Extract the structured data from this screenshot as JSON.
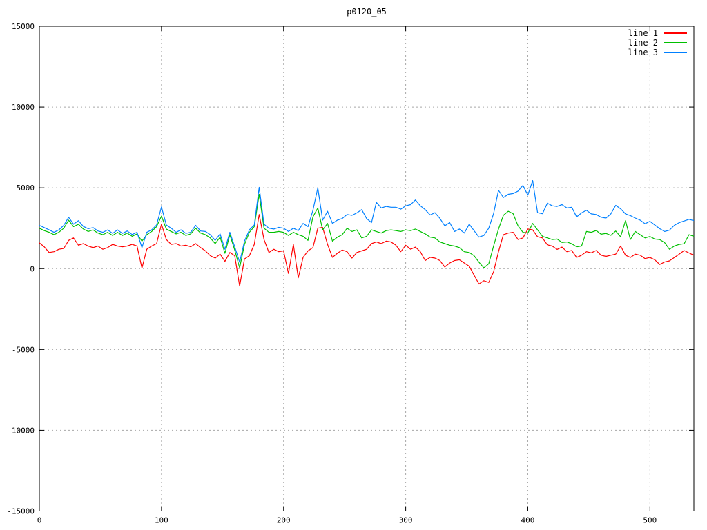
{
  "title": "p0120_05",
  "colors": {
    "background": "#ffffff",
    "border": "#000000",
    "grid": "#a8a8a8",
    "text": "#000000"
  },
  "chart_data": {
    "type": "line",
    "title": "p0120_05",
    "xlabel": "",
    "ylabel": "",
    "xlim": [
      0,
      536
    ],
    "ylim": [
      -15000,
      15000
    ],
    "x_ticks": [
      0,
      100,
      200,
      300,
      400,
      500
    ],
    "y_ticks": [
      -15000,
      -10000,
      -5000,
      0,
      5000,
      10000,
      15000
    ],
    "grid": true,
    "grid_style": "dotted",
    "legend_position": "top-right-inside",
    "x_start": 0,
    "x_step": 4,
    "series": [
      {
        "name": "line 1",
        "color": "#ff0000",
        "values": [
          1600,
          1350,
          1000,
          1050,
          1200,
          1250,
          1750,
          1900,
          1450,
          1550,
          1400,
          1300,
          1400,
          1200,
          1300,
          1500,
          1400,
          1350,
          1400,
          1500,
          1400,
          30,
          1200,
          1400,
          1550,
          2750,
          1800,
          1500,
          1550,
          1400,
          1450,
          1350,
          1550,
          1300,
          1100,
          800,
          650,
          900,
          450,
          1000,
          800,
          -1080,
          600,
          800,
          1500,
          3350,
          1800,
          1000,
          1200,
          1050,
          1100,
          -300,
          1500,
          -570,
          700,
          1100,
          1300,
          2500,
          2550,
          1500,
          700,
          950,
          1150,
          1050,
          650,
          1000,
          1100,
          1200,
          1550,
          1650,
          1550,
          1700,
          1650,
          1450,
          1050,
          1450,
          1200,
          1330,
          1050,
          500,
          700,
          650,
          500,
          100,
          350,
          500,
          550,
          350,
          150,
          -400,
          -950,
          -750,
          -850,
          -200,
          1050,
          2100,
          2200,
          2250,
          1800,
          1900,
          2450,
          2400,
          1970,
          1900,
          1470,
          1400,
          1190,
          1330,
          1050,
          1120,
          690,
          830,
          1050,
          980,
          1120,
          830,
          760,
          830,
          900,
          1400,
          830,
          690,
          900,
          830,
          620,
          690,
          550,
          260,
          410,
          480,
          690,
          900,
          1120,
          970,
          830
        ]
      },
      {
        "name": "line 2",
        "color": "#00c000",
        "values": [
          2500,
          2350,
          2250,
          2100,
          2250,
          2500,
          3000,
          2600,
          2750,
          2450,
          2300,
          2400,
          2200,
          2100,
          2250,
          2050,
          2250,
          2050,
          2200,
          2000,
          2150,
          1700,
          2100,
          2300,
          2600,
          3250,
          2450,
          2300,
          2150,
          2250,
          2050,
          2150,
          2500,
          2200,
          2100,
          1900,
          1550,
          1950,
          950,
          2100,
          1150,
          50,
          1500,
          2250,
          2600,
          4600,
          2500,
          2250,
          2250,
          2300,
          2250,
          2050,
          2250,
          2100,
          2000,
          1750,
          3200,
          3750,
          2400,
          2800,
          1700,
          1950,
          2100,
          2500,
          2300,
          2400,
          1900,
          2000,
          2400,
          2300,
          2200,
          2350,
          2400,
          2350,
          2300,
          2400,
          2350,
          2450,
          2300,
          2150,
          1950,
          1900,
          1650,
          1550,
          1450,
          1400,
          1300,
          1050,
          1000,
          800,
          400,
          50,
          300,
          1400,
          2450,
          3300,
          3550,
          3400,
          2650,
          2250,
          2200,
          2800,
          2400,
          2000,
          1900,
          1800,
          1830,
          1620,
          1650,
          1540,
          1350,
          1400,
          2300,
          2250,
          2360,
          2130,
          2180,
          2060,
          2330,
          1970,
          2970,
          1800,
          2300,
          2100,
          1900,
          1990,
          1830,
          1800,
          1610,
          1200,
          1400,
          1500,
          1540,
          2100,
          2000
        ]
      },
      {
        "name": "line 3",
        "color": "#0080ff",
        "values": [
          2680,
          2540,
          2400,
          2250,
          2400,
          2680,
          3180,
          2750,
          2970,
          2610,
          2470,
          2540,
          2330,
          2250,
          2400,
          2180,
          2400,
          2180,
          2330,
          2110,
          2250,
          1300,
          2250,
          2400,
          2700,
          3820,
          2700,
          2500,
          2250,
          2400,
          2180,
          2250,
          2680,
          2330,
          2300,
          2100,
          1750,
          2150,
          1200,
          2250,
          1350,
          400,
          1700,
          2400,
          2700,
          5030,
          2750,
          2500,
          2450,
          2550,
          2500,
          2300,
          2500,
          2350,
          2800,
          2600,
          3600,
          5000,
          3000,
          3550,
          2800,
          3000,
          3100,
          3350,
          3300,
          3450,
          3650,
          3100,
          2850,
          4100,
          3750,
          3850,
          3800,
          3800,
          3680,
          3890,
          3960,
          4250,
          3890,
          3650,
          3320,
          3460,
          3110,
          2650,
          2850,
          2300,
          2450,
          2200,
          2750,
          2350,
          1950,
          2050,
          2500,
          3400,
          4850,
          4400,
          4600,
          4650,
          4800,
          5150,
          4550,
          5450,
          3460,
          3400,
          4050,
          3890,
          3850,
          3960,
          3750,
          3800,
          3200,
          3450,
          3610,
          3390,
          3350,
          3180,
          3130,
          3390,
          3920,
          3700,
          3390,
          3280,
          3130,
          3000,
          2780,
          2930,
          2700,
          2470,
          2300,
          2380,
          2680,
          2850,
          2950,
          3050,
          2970
        ]
      }
    ]
  }
}
